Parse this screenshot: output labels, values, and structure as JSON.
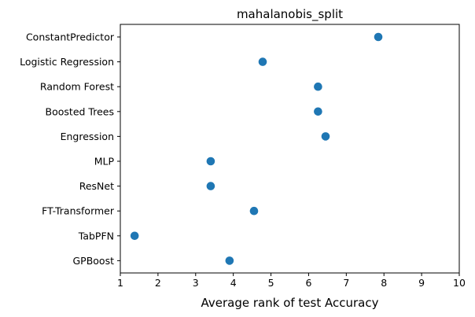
{
  "chart_data": {
    "type": "scatter",
    "title": "mahalanobis_split",
    "xlabel": "Average rank of test Accuracy",
    "ylabel": "",
    "xlim": [
      1,
      10
    ],
    "xticks": [
      1,
      2,
      3,
      4,
      5,
      6,
      7,
      8,
      9,
      10
    ],
    "grid": false,
    "legend": "none",
    "marker_color": "#1f77b4",
    "categories": [
      "ConstantPredictor",
      "Logistic Regression",
      "Random Forest",
      "Boosted Trees",
      "Engression",
      "MLP",
      "ResNet",
      "FT-Transformer",
      "TabPFN",
      "GPBoost"
    ],
    "values": [
      7.85,
      4.78,
      6.25,
      6.25,
      6.45,
      3.4,
      3.4,
      4.55,
      1.38,
      3.9
    ]
  }
}
